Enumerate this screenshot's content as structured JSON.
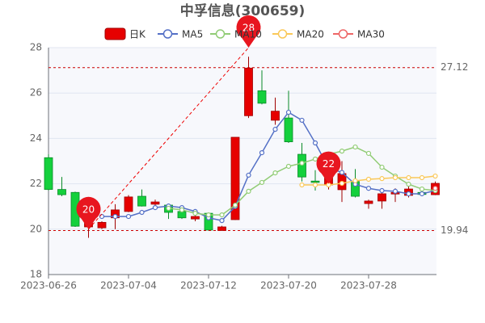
{
  "chart_data": {
    "type": "candlestick",
    "title": "中孚信息(300659)",
    "categories": [
      "2023-06-26",
      null,
      null,
      null,
      null,
      null,
      "2023-07-04",
      null,
      null,
      null,
      null,
      null,
      "2023-07-12",
      null,
      null,
      null,
      null,
      null,
      "2023-07-20",
      null,
      null,
      null,
      null,
      null,
      "2023-07-28",
      null,
      null,
      null,
      null,
      null
    ],
    "ylim": [
      18,
      28
    ],
    "yticks": [
      18,
      20,
      22,
      24,
      26,
      28
    ],
    "grid": true,
    "legend": "top",
    "series": [
      {
        "name": "日K",
        "type": "candlestick",
        "up_color": "#e60000",
        "down_color": "#14d03c",
        "open": [
          23.15,
          21.75,
          21.62,
          20.1,
          20.06,
          20.5,
          20.78,
          21.45,
          21.1,
          21.06,
          20.78,
          20.45,
          20.7,
          19.94,
          20.42,
          25.0,
          26.1,
          24.8,
          24.9,
          23.3,
          22.12,
          21.95,
          21.74,
          22.1,
          21.13,
          21.24,
          21.55,
          21.49,
          21.62,
          21.52
        ],
        "close": [
          21.75,
          21.52,
          20.13,
          20.3,
          20.3,
          20.85,
          21.42,
          21.02,
          21.2,
          20.74,
          20.5,
          20.56,
          19.96,
          20.1,
          24.05,
          27.1,
          25.55,
          25.2,
          23.85,
          22.3,
          22.06,
          22.3,
          22.45,
          21.45,
          21.24,
          21.56,
          21.62,
          21.77,
          21.53,
          22.02
        ],
        "low": [
          21.7,
          21.45,
          20.1,
          19.62,
          20.0,
          20.0,
          20.75,
          21.0,
          20.95,
          20.45,
          20.45,
          20.35,
          19.94,
          19.94,
          20.4,
          24.9,
          25.5,
          24.6,
          23.8,
          22.1,
          21.7,
          21.75,
          21.2,
          21.4,
          20.9,
          20.9,
          21.2,
          21.4,
          21.45,
          21.5
        ],
        "high": [
          23.3,
          22.3,
          21.65,
          20.5,
          20.35,
          21.1,
          21.5,
          21.75,
          21.3,
          21.1,
          20.85,
          20.7,
          20.7,
          20.15,
          24.05,
          27.6,
          27.0,
          25.8,
          26.1,
          23.8,
          22.6,
          23.0,
          23.0,
          22.65,
          21.3,
          21.7,
          21.8,
          21.9,
          21.7,
          22.1
        ]
      },
      {
        "name": "MA5",
        "type": "line",
        "color": "#5470c6",
        "values": [
          null,
          null,
          null,
          null,
          20.56,
          20.56,
          20.56,
          20.74,
          20.95,
          21.02,
          20.95,
          20.78,
          20.5,
          20.38,
          21.0,
          22.38,
          23.37,
          24.4,
          25.15,
          24.8,
          23.8,
          22.7,
          22.5,
          21.98,
          21.8,
          21.7,
          21.67,
          21.56,
          21.56,
          21.7
        ]
      },
      {
        "name": "MA10",
        "type": "line",
        "color": "#91cc75",
        "values": [
          null,
          null,
          null,
          null,
          null,
          null,
          null,
          null,
          null,
          20.92,
          20.85,
          20.7,
          20.63,
          20.63,
          21.06,
          21.67,
          22.06,
          22.48,
          22.77,
          22.91,
          23.09,
          23.3,
          23.44,
          23.62,
          23.34,
          22.73,
          22.34,
          21.98,
          21.77,
          21.7
        ]
      },
      {
        "name": "MA20",
        "type": "line",
        "color": "#fac858",
        "values": [
          null,
          null,
          null,
          null,
          null,
          null,
          null,
          null,
          null,
          null,
          null,
          null,
          null,
          null,
          null,
          null,
          null,
          null,
          null,
          21.95,
          21.95,
          21.95,
          22.02,
          22.13,
          22.2,
          22.23,
          22.27,
          22.27,
          22.27,
          22.34
        ]
      },
      {
        "name": "MA30",
        "type": "line",
        "color": "#ee6666",
        "values": [
          null,
          null,
          null,
          null,
          null,
          null,
          null,
          null,
          null,
          null,
          null,
          null,
          null,
          null,
          null,
          null,
          null,
          null,
          null,
          null,
          null,
          null,
          null,
          null,
          null,
          null,
          null,
          null,
          null,
          21.8
        ]
      }
    ],
    "mark_lines": [
      27.12,
      19.94
    ],
    "markers": [
      null,
      null,
      null,
      20,
      null,
      null,
      null,
      null,
      null,
      null,
      null,
      null,
      null,
      null,
      null,
      28,
      null,
      null,
      null,
      null,
      null,
      22,
      null,
      null,
      null,
      null,
      null,
      null,
      null,
      null
    ]
  }
}
